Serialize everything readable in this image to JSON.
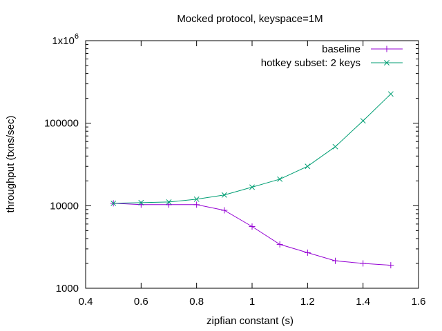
{
  "chart_data": {
    "type": "line",
    "title": "Mocked protocol, keyspace=1M",
    "xlabel": "zipfian constant (s)",
    "ylabel": "throughput (txns/sec)",
    "xlim": [
      0.4,
      1.6
    ],
    "ylim": [
      1000,
      1000000
    ],
    "yscale": "log",
    "x_ticks": [
      0.4,
      0.6,
      0.8,
      1.0,
      1.2,
      1.4,
      1.6
    ],
    "x_tick_labels": [
      "0.4",
      "0.6",
      "0.8",
      "1",
      "1.2",
      "1.4",
      "1.6"
    ],
    "y_ticks": [
      1000,
      10000,
      100000,
      1000000
    ],
    "y_tick_labels": [
      "1000",
      "10000",
      "100000",
      "1x10^6"
    ],
    "grid": false,
    "legend_position": "top-right",
    "x": [
      0.5,
      0.6,
      0.7,
      0.8,
      0.9,
      1.0,
      1.1,
      1.2,
      1.3,
      1.4,
      1.5
    ],
    "series": [
      {
        "name": "baseline",
        "color": "#9400d3",
        "marker": "plus",
        "values": [
          10700,
          10300,
          10300,
          10300,
          8800,
          5600,
          3400,
          2700,
          2150,
          2000,
          1900
        ]
      },
      {
        "name": "hotkey subset: 2 keys",
        "color": "#009e73",
        "marker": "cross",
        "values": [
          10700,
          10900,
          11100,
          12000,
          13500,
          16800,
          21000,
          30000,
          52000,
          107000,
          226000
        ]
      }
    ]
  }
}
